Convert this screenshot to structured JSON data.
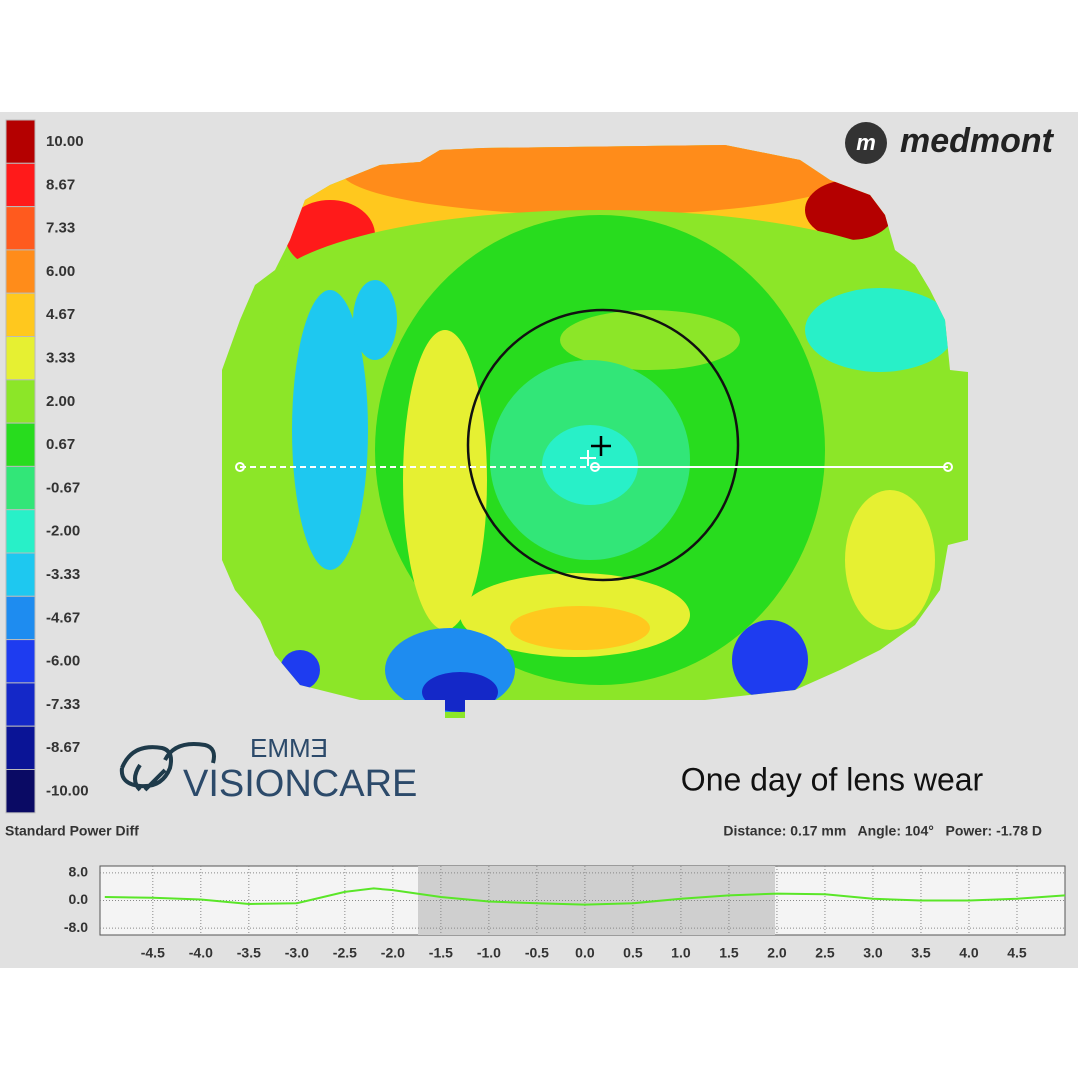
{
  "colorbar": {
    "labels": [
      "10.00",
      "8.67",
      "7.33",
      "6.00",
      "4.67",
      "3.33",
      "2.00",
      "0.67",
      "-0.67",
      "-2.00",
      "-3.33",
      "-4.67",
      "-6.00",
      "-7.33",
      "-8.67",
      "-10.00"
    ],
    "colors": [
      "#b40000",
      "#ff1a1a",
      "#ff5a1e",
      "#ff8c1a",
      "#ffc81e",
      "#e6f032",
      "#8ce628",
      "#28dc1e",
      "#32e678",
      "#28f0c8",
      "#1ec8f0",
      "#1e8cf0",
      "#1e3cf0",
      "#1428c8",
      "#0a1496",
      "#0a0a64"
    ]
  },
  "logo": "medmont",
  "brand": {
    "line1": "EMMƎ",
    "line2": "VISIONCARE"
  },
  "caption": "One day of lens wear",
  "map_label": "Standard Power Diff",
  "status": "Distance: 0.17 mm   Angle: 104°   Power: -1.78 D",
  "chart_data": {
    "type": "line",
    "color": "#5ae628",
    "grid": true,
    "x": [
      -5.0,
      -4.5,
      -4.0,
      -3.5,
      -3.0,
      -2.5,
      -2.2,
      -2.0,
      -1.5,
      -1.0,
      -0.5,
      0.0,
      0.5,
      1.0,
      1.5,
      2.0,
      2.5,
      3.0,
      3.5,
      4.0,
      4.5,
      5.0
    ],
    "values": [
      1.0,
      0.8,
      0.3,
      -1.0,
      -0.8,
      2.5,
      3.5,
      3.0,
      1.0,
      -0.3,
      -0.8,
      -1.2,
      -0.8,
      0.5,
      1.5,
      2.0,
      1.8,
      0.5,
      0.0,
      0.0,
      0.5,
      1.5
    ],
    "xlim": [
      -5.05,
      5.0
    ],
    "ylim": [
      -10,
      10
    ],
    "xticks": [
      {
        "value": -4.5,
        "label": "-4.5"
      },
      {
        "value": -4,
        "label": "-4.0"
      },
      {
        "value": -3.5,
        "label": "-3.5"
      },
      {
        "value": -3,
        "label": "-3.0"
      },
      {
        "value": -2.5,
        "label": "-2.5"
      },
      {
        "value": -2,
        "label": "-2.0"
      },
      {
        "value": -1.5,
        "label": "-1.5"
      },
      {
        "value": -1,
        "label": "-1.0"
      },
      {
        "value": -0.5,
        "label": "-0.5"
      },
      {
        "value": 0,
        "label": "0.0"
      },
      0.5,
      {
        "value": 1,
        "label": "1.0"
      },
      1.5,
      {
        "value": 2,
        "label": "2.0"
      },
      2.5,
      {
        "value": 3,
        "label": "3.0"
      },
      3.5,
      {
        "value": 4,
        "label": "4.0"
      },
      4.5
    ],
    "yticks": [
      {
        "value": 8,
        "label": "8.0"
      },
      {
        "value": 0,
        "label": "0.0"
      },
      {
        "value": -8,
        "label": "-8.0"
      }
    ]
  }
}
